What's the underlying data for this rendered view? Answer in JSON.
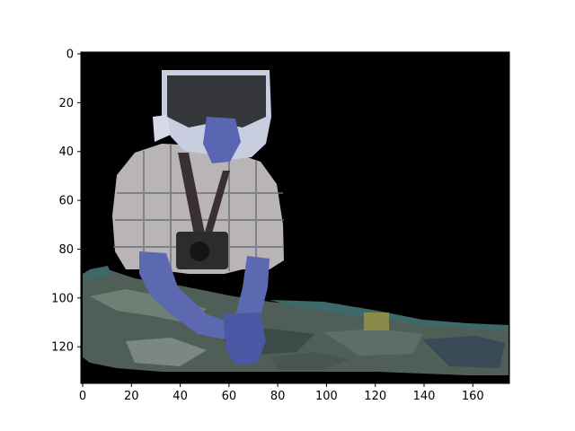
{
  "figure": {
    "background": "#ffffff",
    "image_background": "#000000",
    "image_description_icon": "photo-person-sitting",
    "x_axis": {
      "range": [
        0,
        175
      ],
      "ticks": [
        {
          "value": 0,
          "label": "0"
        },
        {
          "value": 20,
          "label": "20"
        },
        {
          "value": 40,
          "label": "40"
        },
        {
          "value": 60,
          "label": "60"
        },
        {
          "value": 80,
          "label": "80"
        },
        {
          "value": 100,
          "label": "100"
        },
        {
          "value": 120,
          "label": "120"
        },
        {
          "value": 140,
          "label": "140"
        },
        {
          "value": 160,
          "label": "160"
        }
      ]
    },
    "y_axis": {
      "range": [
        0,
        135
      ],
      "inverted": true,
      "ticks": [
        {
          "value": 0,
          "label": "0"
        },
        {
          "value": 20,
          "label": "20"
        },
        {
          "value": 40,
          "label": "40"
        },
        {
          "value": 60,
          "label": "60"
        },
        {
          "value": 80,
          "label": "80"
        },
        {
          "value": 100,
          "label": "100"
        },
        {
          "value": 120,
          "label": "120"
        }
      ]
    }
  }
}
